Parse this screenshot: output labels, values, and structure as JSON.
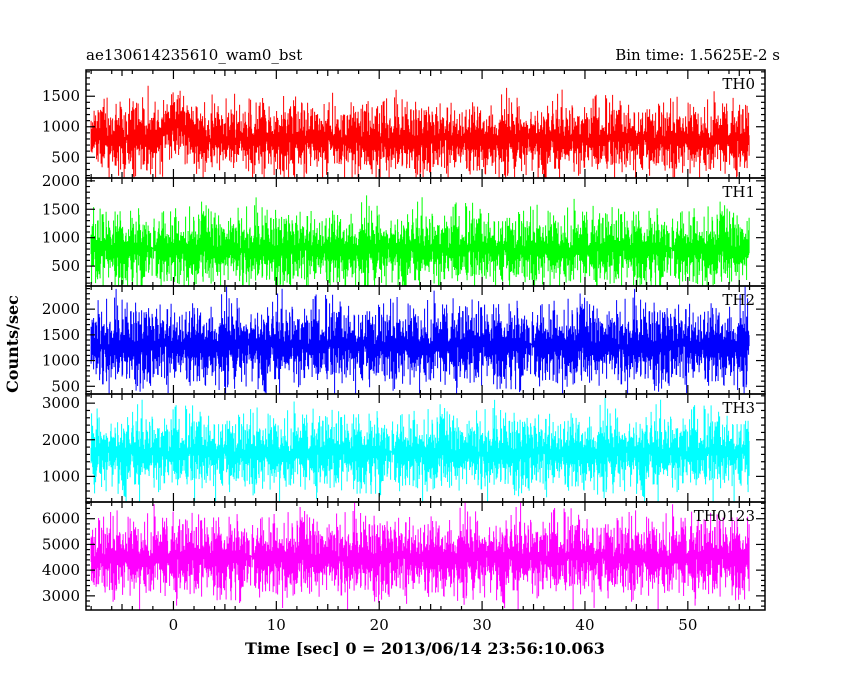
{
  "chart_data": {
    "type": "line",
    "title_left": "ae130614235610_wam0_bst",
    "title_right": "Bin time: 1.5625E-2 s",
    "xlabel": "Time [sec] 0 = 2013/06/14 23:56:10.063",
    "ylabel": "Counts/sec",
    "xlim": [
      -8.5,
      57.5
    ],
    "x_range_data": [
      -8,
      56
    ],
    "x_ticks": [
      0,
      10,
      20,
      30,
      40,
      50
    ],
    "panels": [
      {
        "name": "TH0",
        "color": "#ff0000",
        "ylim": [
          160,
          1930
        ],
        "y_ticks": [
          500,
          1000,
          1500
        ],
        "mean": 800,
        "spread": [
          250,
          1650
        ],
        "burst": {
          "start": -1.5,
          "end": 3,
          "level": 1050
        }
      },
      {
        "name": "TH1",
        "color": "#00ff00",
        "ylim": [
          150,
          2050
        ],
        "y_ticks": [
          500,
          1000,
          1500,
          2000
        ],
        "mean": 800,
        "spread": [
          220,
          1800
        ]
      },
      {
        "name": "TH2",
        "color": "#0000ff",
        "ylim": [
          350,
          2450
        ],
        "y_ticks": [
          500,
          1000,
          1500,
          2000
        ],
        "mean": 1300,
        "spread": [
          450,
          2350
        ]
      },
      {
        "name": "TH3",
        "color": "#00ffff",
        "ylim": [
          300,
          3250
        ],
        "y_ticks": [
          1000,
          2000,
          3000
        ],
        "mean": 1650,
        "spread": [
          600,
          3100
        ]
      },
      {
        "name": "TH0123",
        "color": "#ff00ff",
        "ylim": [
          2450,
          6650
        ],
        "y_ticks": [
          3000,
          4000,
          5000,
          6000
        ],
        "mean": 4500,
        "spread": [
          2700,
          6400
        ]
      }
    ]
  }
}
